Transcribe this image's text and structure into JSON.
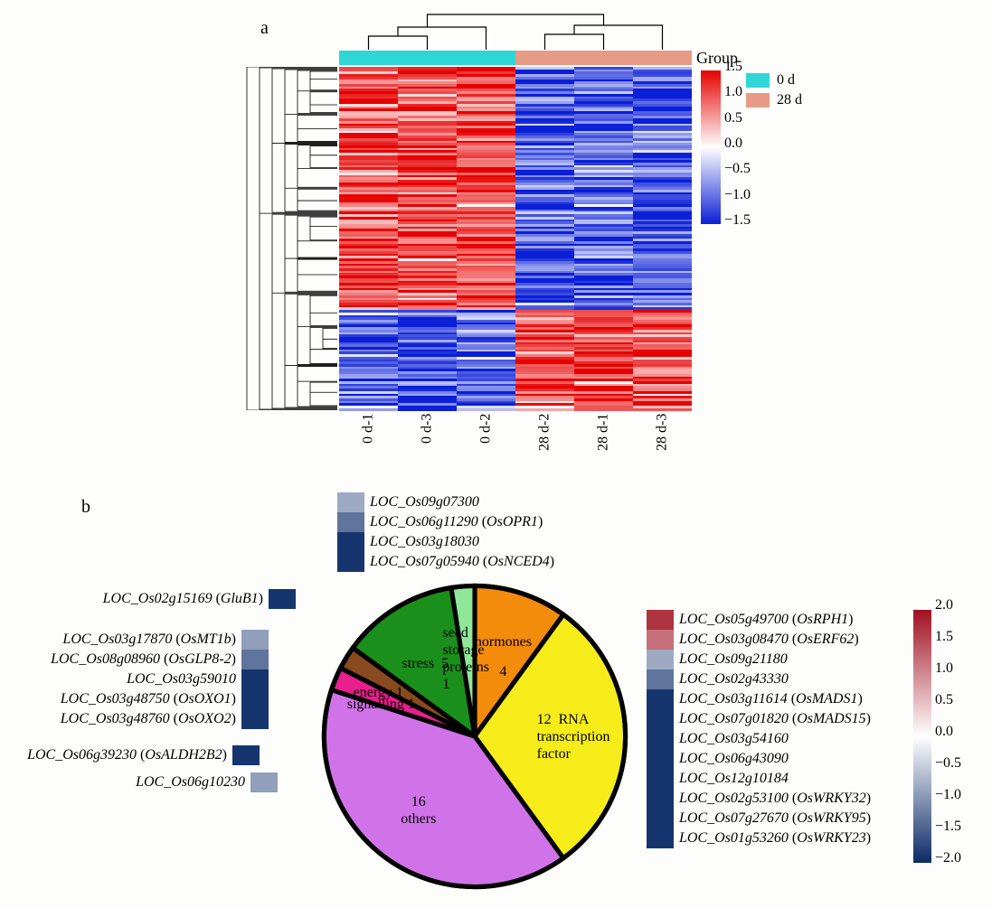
{
  "panelA": {
    "label": "a",
    "label_fontsize": 20,
    "group_label": "Group",
    "groups": [
      {
        "name": "0 d",
        "color": "#2fd6d6"
      },
      {
        "name": "28 d",
        "color": "#e79a84"
      }
    ],
    "column_groups": [
      "0 d",
      "0 d",
      "0 d",
      "28 d",
      "28 d",
      "28 d"
    ],
    "heatmap": {
      "type": "heatmap",
      "n_cols": 6,
      "n_rows": 140,
      "col_labels": [
        "0 d-1",
        "0 d-3",
        "0 d-2",
        "28 d-2",
        "28 d-1",
        "28 d-3"
      ],
      "colorscale": {
        "min": -1.5,
        "max": 1.5,
        "mid": 0,
        "low_color": "#0a1fd6",
        "mid_color": "#ffffff",
        "high_color": "#e60000",
        "tick_values": [
          1.5,
          1.0,
          0.5,
          0.0,
          -0.5,
          -1.0,
          -1.5
        ]
      },
      "dendrogram_line_color": "#000000",
      "row_seed": 17
    }
  },
  "panelB": {
    "label": "b",
    "pie": {
      "type": "pie",
      "stroke": "#000000",
      "stroke_width": 3,
      "slices": [
        {
          "name": "hormones",
          "label": "hormones",
          "value": 4,
          "color": "#f38b0b"
        },
        {
          "name": "rna-transcription-factor",
          "label": "RNA\ntranscription\nfactor",
          "value": 12,
          "color": "#f5ec1a"
        },
        {
          "name": "others",
          "label": "others",
          "value": 16,
          "color": "#d173e8"
        },
        {
          "name": "signalling",
          "label": "signalling",
          "value": 1,
          "color": "#e81f8c"
        },
        {
          "name": "energy",
          "label": "energy",
          "value": 1,
          "color": "#8a4a1f"
        },
        {
          "name": "stress",
          "label": "stress",
          "value": 5,
          "color": "#1b8f1b"
        },
        {
          "name": "seed-storage-proteins",
          "label": "seed\nstorage\nproteins",
          "value": 1,
          "color": "#8fe89a"
        }
      ]
    },
    "colorscale": {
      "min": -2.0,
      "max": 2.0,
      "mid": 0,
      "low_color": "#0a2a66",
      "mid_color": "#ffffff",
      "high_color": "#a01020",
      "tick_values": [
        2.0,
        1.5,
        1.0,
        0.5,
        0.0,
        -0.5,
        -1.0,
        -1.5,
        -2.0
      ]
    },
    "gene_blocks": {
      "hormones": [
        {
          "locus": "LOC_Os09g07300",
          "alias": null,
          "value": -0.8
        },
        {
          "locus": "LOC_Os06g11290",
          "alias": "OsOPR1",
          "value": -1.3
        },
        {
          "locus": "LOC_Os03g18030",
          "alias": null,
          "value": -1.9
        },
        {
          "locus": "LOC_Os07g05940",
          "alias": "OsNCED4",
          "value": -1.9
        }
      ],
      "seed_storage_proteins": [
        {
          "locus": "LOC_Os02g15169",
          "alias": "GluB1",
          "value": -1.9
        }
      ],
      "stress": [
        {
          "locus": "LOC_Os03g17870",
          "alias": "OsMT1b",
          "value": -0.9
        },
        {
          "locus": "LOC_Os08g08960",
          "alias": "OsGLP8-2",
          "value": -1.3
        },
        {
          "locus": "LOC_Os03g59010",
          "alias": null,
          "value": -1.9
        },
        {
          "locus": "LOC_Os03g48750",
          "alias": "OsOXO1",
          "value": -1.9
        },
        {
          "locus": "LOC_Os03g48760",
          "alias": "OsOXO2",
          "value": -1.9
        }
      ],
      "energy": [
        {
          "locus": "LOC_Os06g39230",
          "alias": "OsALDH2B2",
          "value": -1.9
        }
      ],
      "signalling": [
        {
          "locus": "LOC_Os06g10230",
          "alias": null,
          "value": -0.9
        }
      ],
      "rna_tf": [
        {
          "locus": "LOC_Os05g49700",
          "alias": "OsRPH1",
          "value": 1.7
        },
        {
          "locus": "LOC_Os03g08470",
          "alias": "OsERF62",
          "value": 1.2
        },
        {
          "locus": "LOC_Os09g21180",
          "alias": null,
          "value": -0.8
        },
        {
          "locus": "LOC_Os02g43330",
          "alias": null,
          "value": -1.3
        },
        {
          "locus": "LOC_Os03g11614",
          "alias": "OsMADS1",
          "value": -1.9
        },
        {
          "locus": "LOC_Os07g01820",
          "alias": "OsMADS15",
          "value": -1.9
        },
        {
          "locus": "LOC_Os03g54160",
          "alias": null,
          "value": -1.9
        },
        {
          "locus": "LOC_Os06g43090",
          "alias": null,
          "value": -1.9
        },
        {
          "locus": "LOC_Os12g10184",
          "alias": null,
          "value": -1.9
        },
        {
          "locus": "LOC_Os02g53100",
          "alias": "OsWRKY32",
          "value": -1.9
        },
        {
          "locus": "LOC_Os07g27670",
          "alias": "OsWRKY95",
          "value": -1.9
        },
        {
          "locus": "LOC_Os01g53260",
          "alias": "OsWRKY23",
          "value": -1.9
        }
      ]
    }
  }
}
